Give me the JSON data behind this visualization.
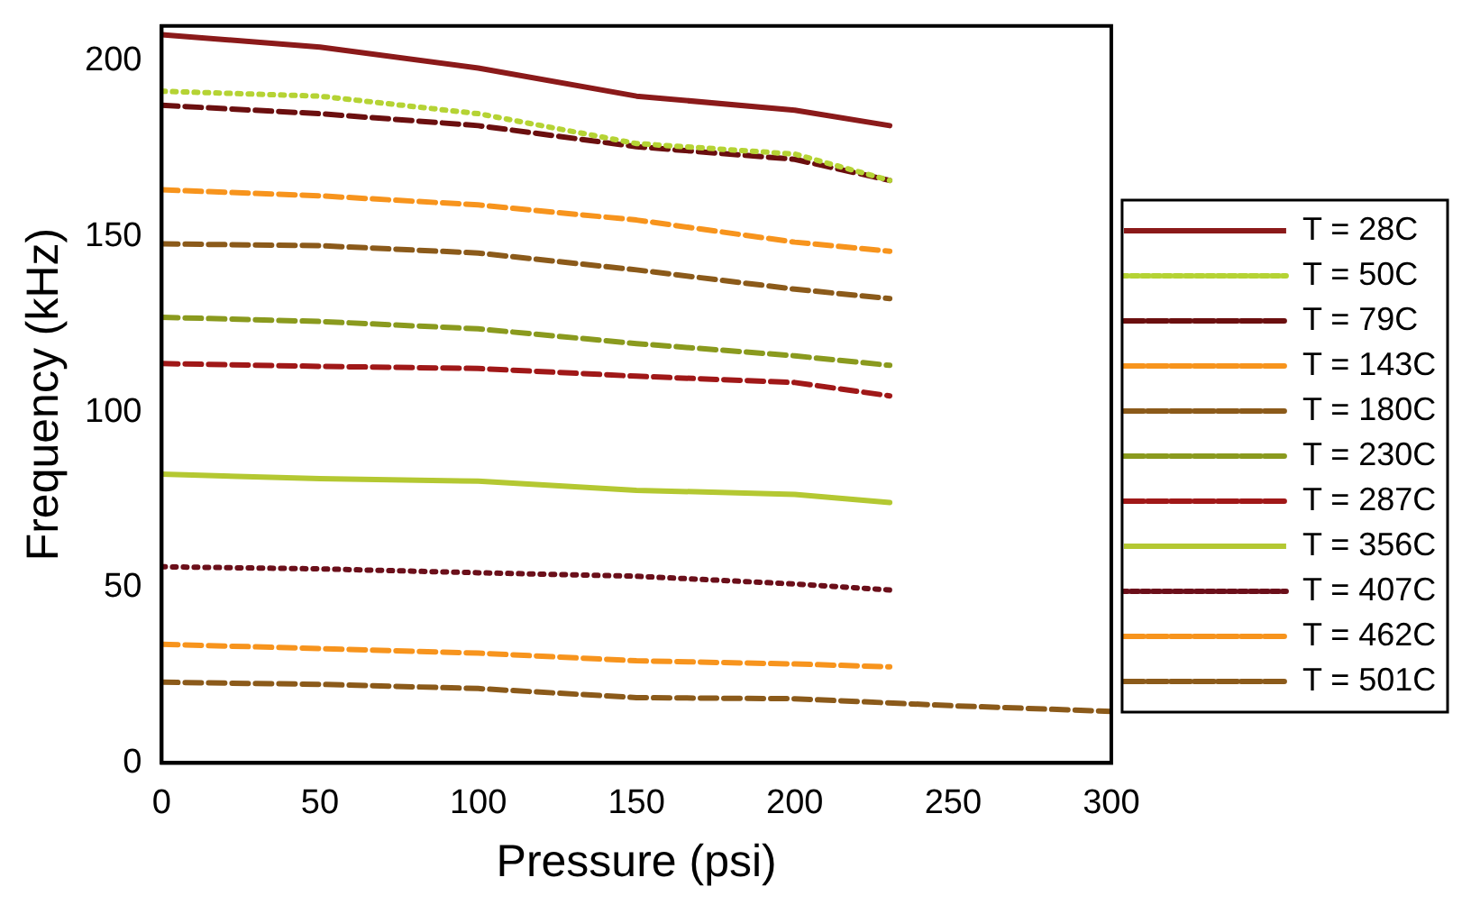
{
  "chart_data": {
    "type": "line",
    "xlabel": "Pressure (psi)",
    "ylabel": "Frequency (kHz)",
    "x": [
      0,
      50,
      100,
      150,
      200,
      230,
      250,
      300
    ],
    "xlim": [
      0,
      300
    ],
    "xticks": [
      0,
      50,
      100,
      150,
      200,
      250,
      300
    ],
    "ylim": [
      0,
      210
    ],
    "yticks": [
      0,
      50,
      100,
      150,
      200
    ],
    "grid": false,
    "legend": "right",
    "marker": "none",
    "series": [
      {
        "name": "T = 28C",
        "color": "#8b1a1a",
        "line_style": "solid",
        "values": [
          207.5,
          204,
          198,
          190,
          186,
          181.6,
          null,
          null
        ]
      },
      {
        "name": "T = 50C",
        "color": "#b5d334",
        "line_style": "dotted",
        "values": [
          191.4,
          190,
          185,
          176.5,
          173.5,
          166,
          null,
          null
        ]
      },
      {
        "name": "T = 79C",
        "color": "#6b0f0f",
        "line_style": "dashed",
        "values": [
          187.4,
          185,
          181.6,
          175.6,
          172,
          166,
          null,
          null
        ]
      },
      {
        "name": "T = 143C",
        "color": "#f7941d",
        "line_style": "dashed",
        "values": [
          163.3,
          161.6,
          159,
          154.7,
          148.4,
          145.8,
          null,
          null
        ]
      },
      {
        "name": "T = 180C",
        "color": "#8b5a1a",
        "line_style": "dashed",
        "values": [
          147.9,
          147.4,
          145.3,
          140.5,
          135,
          132.3,
          null,
          null
        ]
      },
      {
        "name": "T = 230C",
        "color": "#8a9a1e",
        "line_style": "dashed",
        "values": [
          127,
          125.8,
          123.7,
          119.5,
          116,
          113.3,
          null,
          null
        ]
      },
      {
        "name": "T = 287C",
        "color": "#a01818",
        "line_style": "dashed",
        "values": [
          113.8,
          113,
          112.4,
          110.2,
          108.4,
          104.6,
          null,
          null
        ]
      },
      {
        "name": "T = 356C",
        "color": "#b4c832",
        "line_style": "solid",
        "values": [
          82.3,
          81,
          80.3,
          77.7,
          76.5,
          74.2,
          null,
          null
        ]
      },
      {
        "name": "T = 407C",
        "color": "#6b0f1a",
        "line_style": "dotted",
        "values": [
          55.9,
          55.3,
          54.2,
          53.2,
          51,
          49.3,
          null,
          null
        ]
      },
      {
        "name": "T = 462C",
        "color": "#f7941d",
        "line_style": "dashed",
        "values": [
          33.8,
          32.6,
          31.3,
          29.1,
          28.2,
          27.4,
          null,
          null
        ]
      },
      {
        "name": "T = 501C",
        "color": "#8b5a1a",
        "line_style": "dashed",
        "values": [
          23,
          22.4,
          21.2,
          18.6,
          18.3,
          null,
          16.3,
          14.7
        ]
      }
    ]
  }
}
